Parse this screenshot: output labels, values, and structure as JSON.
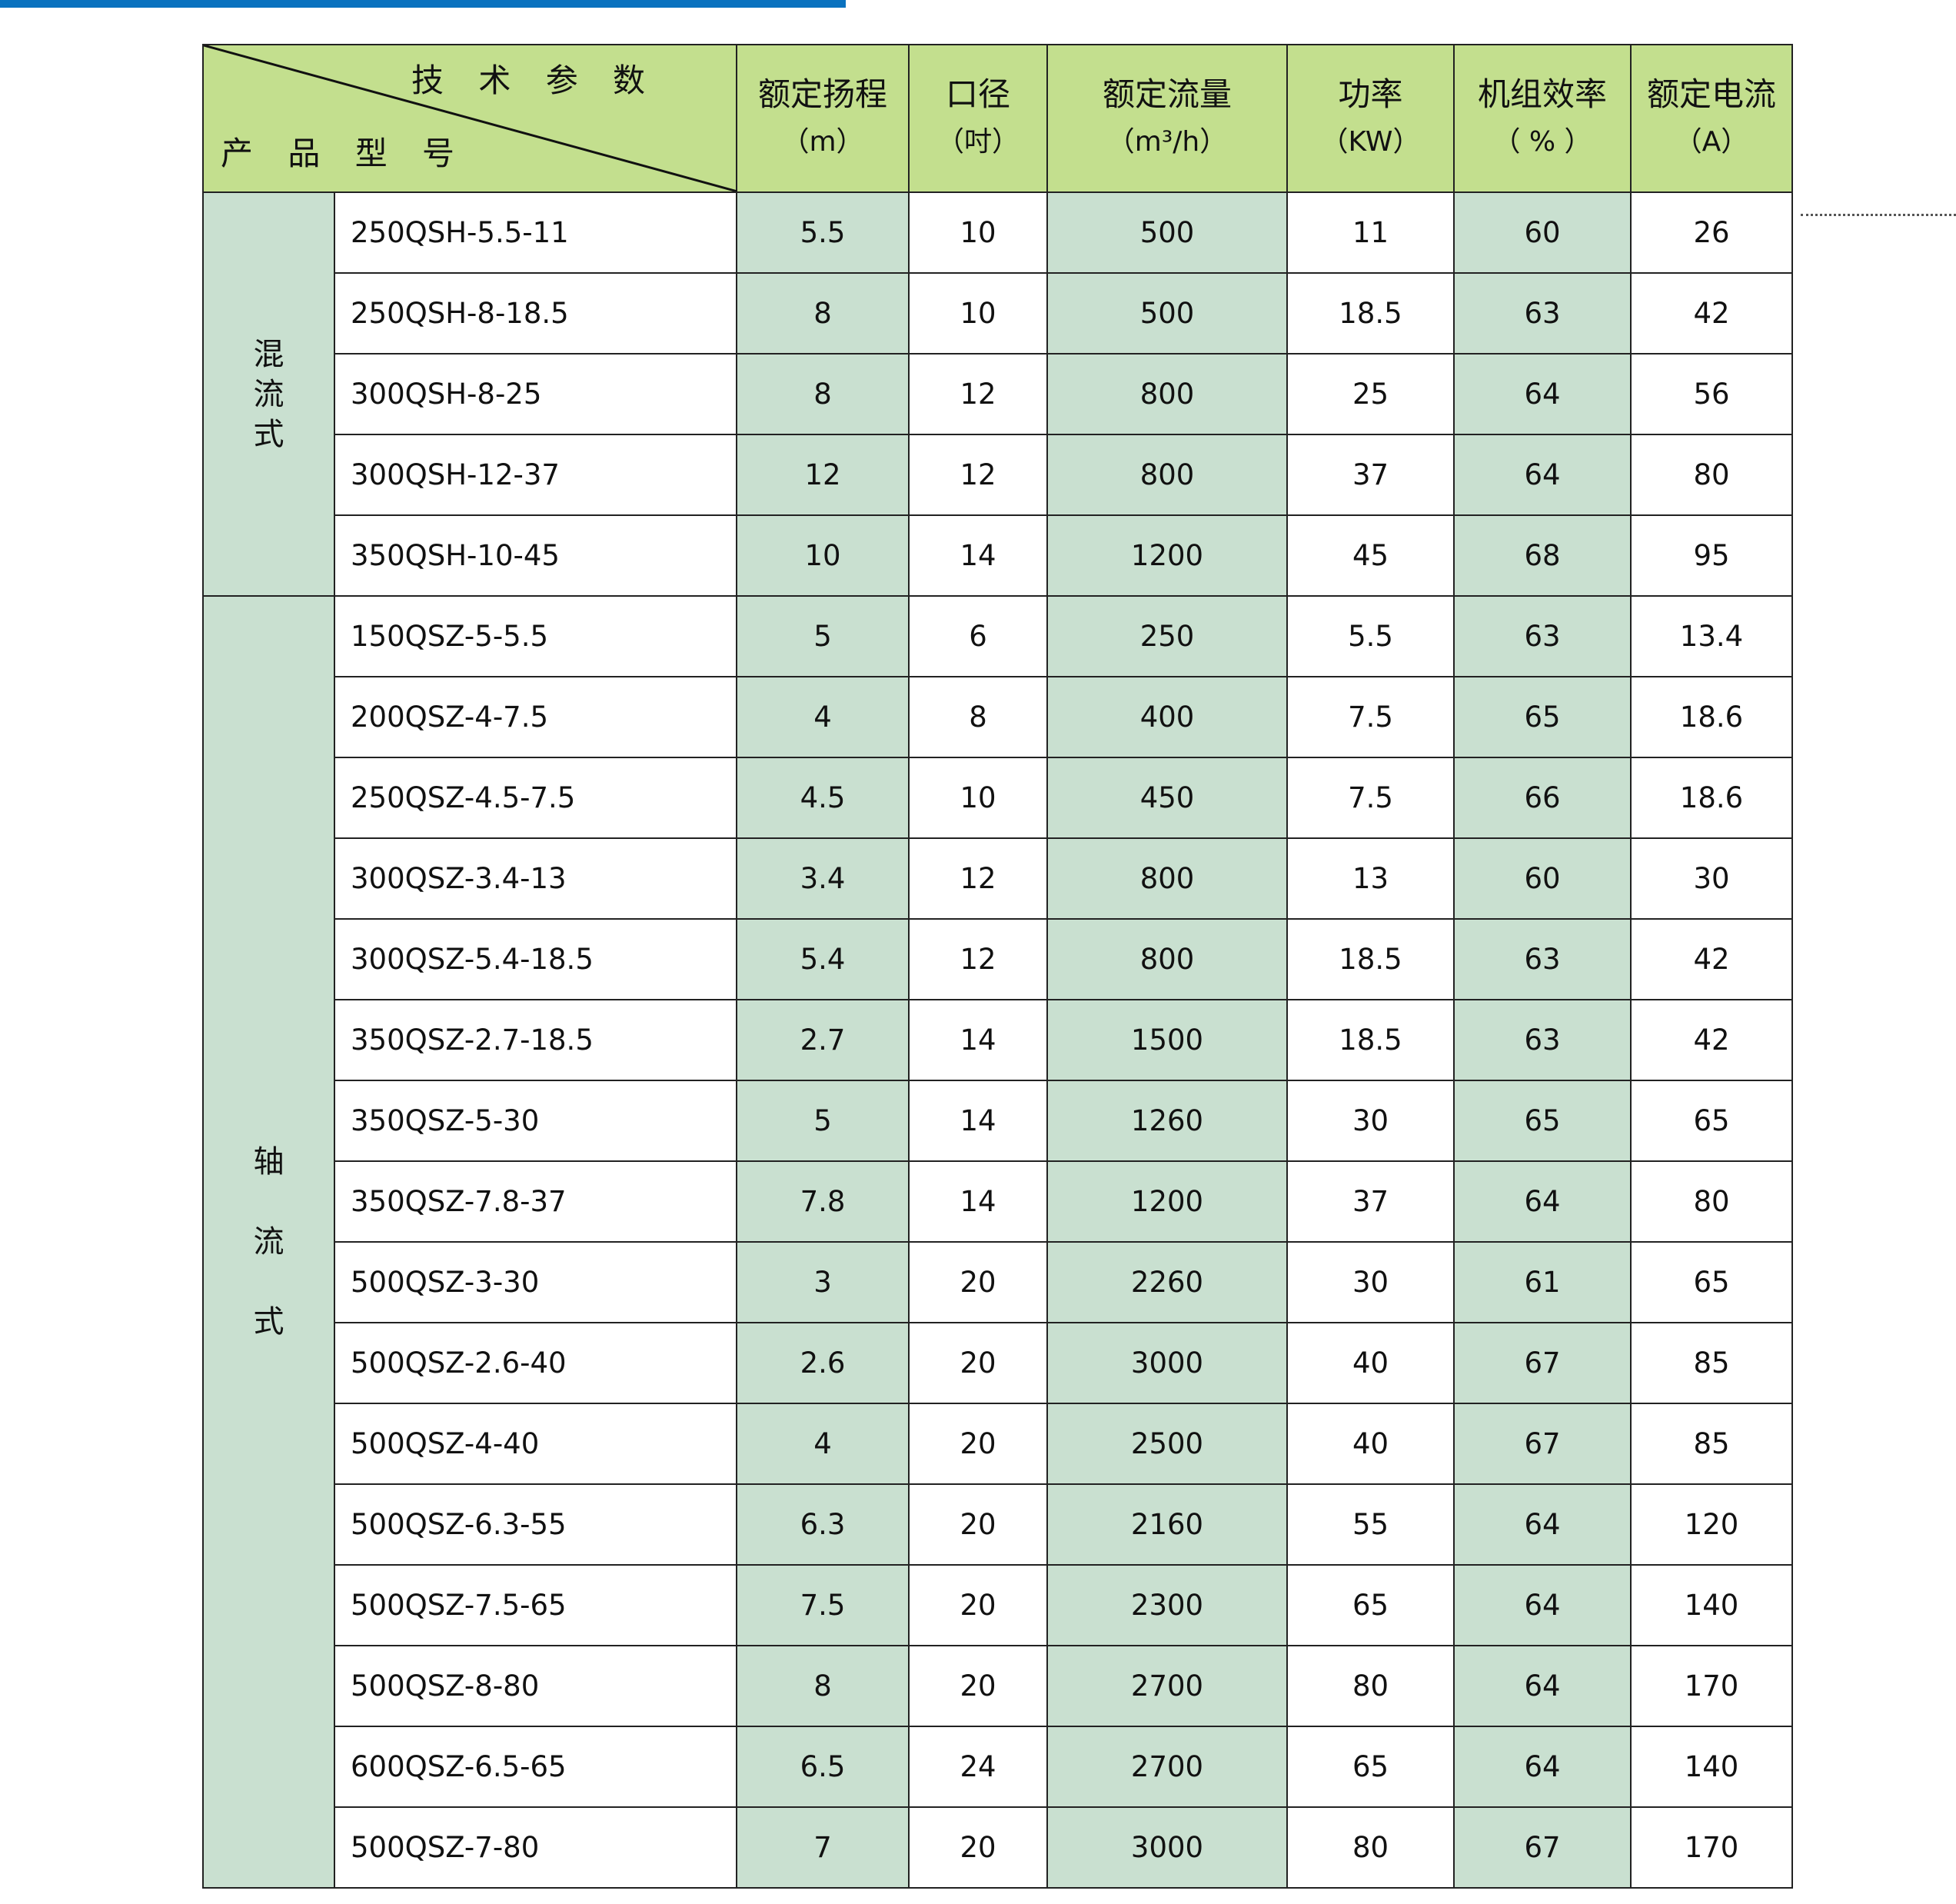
{
  "colors": {
    "header": "#c3df8e",
    "shaded_column": "#c9e0d0",
    "top_bar": "#0a72bf"
  },
  "header": {
    "diag_top": "技 术 参 数",
    "diag_bottom": "产 品 型 号",
    "columns": [
      {
        "label": "额定扬程",
        "unit": "（m）"
      },
      {
        "label": "口径",
        "unit": "（吋）"
      },
      {
        "label": "额定流量",
        "unit": "（m³/h）"
      },
      {
        "label": "功率",
        "unit": "（KW）"
      },
      {
        "label": "机组效率",
        "unit": "（ % ）"
      },
      {
        "label": "额定电流",
        "unit": "（A）"
      }
    ]
  },
  "groups": [
    {
      "name": "混\n流\n式",
      "rows": [
        [
          "250QSH-5.5-11",
          "5.5",
          "10",
          "500",
          "11",
          "60",
          "26"
        ],
        [
          "250QSH-8-18.5",
          "8",
          "10",
          "500",
          "18.5",
          "63",
          "42"
        ],
        [
          "300QSH-8-25",
          "8",
          "12",
          "800",
          "25",
          "64",
          "56"
        ],
        [
          "300QSH-12-37",
          "12",
          "12",
          "800",
          "37",
          "64",
          "80"
        ],
        [
          "350QSH-10-45",
          "10",
          "14",
          "1200",
          "45",
          "68",
          "95"
        ]
      ]
    },
    {
      "name": "轴\n\n流\n\n式",
      "rows": [
        [
          "150QSZ-5-5.5",
          "5",
          "6",
          "250",
          "5.5",
          "63",
          "13.4"
        ],
        [
          "200QSZ-4-7.5",
          "4",
          "8",
          "400",
          "7.5",
          "65",
          "18.6"
        ],
        [
          "250QSZ-4.5-7.5",
          "4.5",
          "10",
          "450",
          "7.5",
          "66",
          "18.6"
        ],
        [
          "300QSZ-3.4-13",
          "3.4",
          "12",
          "800",
          "13",
          "60",
          "30"
        ],
        [
          "300QSZ-5.4-18.5",
          "5.4",
          "12",
          "800",
          "18.5",
          "63",
          "42"
        ],
        [
          "350QSZ-2.7-18.5",
          "2.7",
          "14",
          "1500",
          "18.5",
          "63",
          "42"
        ],
        [
          "350QSZ-5-30",
          "5",
          "14",
          "1260",
          "30",
          "65",
          "65"
        ],
        [
          "350QSZ-7.8-37",
          "7.8",
          "14",
          "1200",
          "37",
          "64",
          "80"
        ],
        [
          "500QSZ-3-30",
          "3",
          "20",
          "2260",
          "30",
          "61",
          "65"
        ],
        [
          "500QSZ-2.6-40",
          "2.6",
          "20",
          "3000",
          "40",
          "67",
          "85"
        ],
        [
          "500QSZ-4-40",
          "4",
          "20",
          "2500",
          "40",
          "67",
          "85"
        ],
        [
          "500QSZ-6.3-55",
          "6.3",
          "20",
          "2160",
          "55",
          "64",
          "120"
        ],
        [
          "500QSZ-7.5-65",
          "7.5",
          "20",
          "2300",
          "65",
          "64",
          "140"
        ],
        [
          "500QSZ-8-80",
          "8",
          "20",
          "2700",
          "80",
          "64",
          "170"
        ],
        [
          "600QSZ-6.5-65",
          "6.5",
          "24",
          "2700",
          "65",
          "64",
          "140"
        ],
        [
          "500QSZ-7-80",
          "7",
          "20",
          "3000",
          "80",
          "67",
          "170"
        ]
      ]
    }
  ]
}
